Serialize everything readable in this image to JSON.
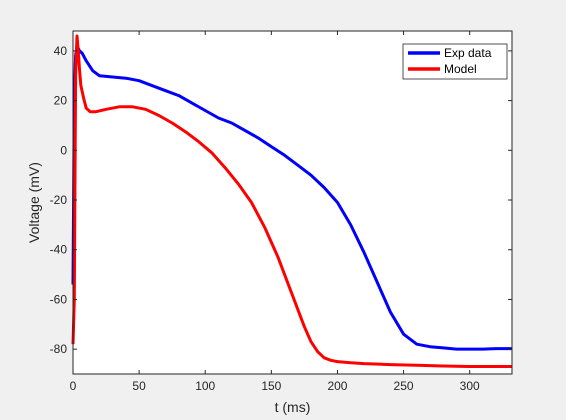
{
  "chart_data": {
    "type": "line",
    "xlabel": "t (ms)",
    "ylabel": "Voltage (mV)",
    "xlim": [
      0,
      332
    ],
    "ylim": [
      -90,
      48
    ],
    "xticks": [
      0,
      50,
      100,
      150,
      200,
      250,
      300
    ],
    "yticks": [
      -80,
      -60,
      -40,
      -20,
      0,
      20,
      40
    ],
    "grid": false,
    "legend_position": "top-right",
    "series": [
      {
        "name": "Exp data",
        "color": "#0000ff",
        "x": [
          0,
          1,
          2,
          3,
          4,
          5,
          7,
          10,
          15,
          20,
          30,
          40,
          50,
          60,
          70,
          80,
          90,
          100,
          110,
          120,
          130,
          140,
          150,
          160,
          170,
          180,
          190,
          200,
          210,
          220,
          230,
          240,
          250,
          260,
          270,
          280,
          290,
          300,
          310,
          320,
          332
        ],
        "y": [
          -54,
          20,
          38,
          42,
          41,
          40,
          39,
          36,
          32,
          30,
          29.5,
          29,
          28,
          26,
          24,
          22,
          19,
          16,
          13,
          11,
          8,
          5,
          1.5,
          -2,
          -6,
          -10,
          -15,
          -21,
          -30,
          -41,
          -53,
          -65,
          -74,
          -78,
          -79,
          -79.5,
          -80,
          -80,
          -80,
          -79.8,
          -79.8
        ]
      },
      {
        "name": "Model",
        "color": "#ff0000",
        "x": [
          0,
          1,
          2,
          3,
          4,
          5,
          6,
          8,
          10,
          13,
          17,
          25,
          35,
          45,
          55,
          65,
          75,
          85,
          95,
          105,
          115,
          125,
          135,
          145,
          155,
          165,
          175,
          180,
          185,
          190,
          195,
          200,
          210,
          220,
          240,
          260,
          280,
          300,
          320,
          332
        ],
        "y": [
          -78,
          -60,
          30,
          46,
          40,
          32,
          26,
          21,
          17,
          15.5,
          15.5,
          16.5,
          17.5,
          17.5,
          16.5,
          14,
          11,
          7.5,
          3.5,
          -1,
          -7,
          -13.5,
          -21,
          -31,
          -43,
          -57,
          -71,
          -77,
          -81,
          -83.5,
          -84.5,
          -85,
          -85.5,
          -85.8,
          -86.2,
          -86.5,
          -86.8,
          -87,
          -87,
          -87
        ]
      }
    ]
  }
}
